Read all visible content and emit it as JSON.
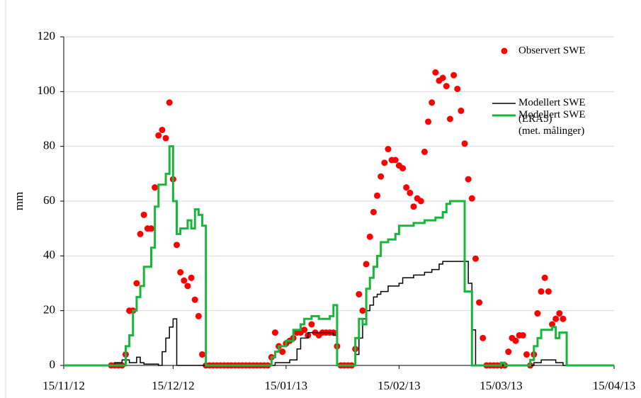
{
  "chart_data": {
    "type": "line",
    "ylabel": "mm",
    "xlim": [
      "2012-11-15",
      "2013-04-15"
    ],
    "xticks": [
      {
        "value": "2012-11-15",
        "label": "15/11/12"
      },
      {
        "value": "2012-12-15",
        "label": "15/12/12"
      },
      {
        "value": "2013-01-15",
        "label": "15/01/13"
      },
      {
        "value": "2013-02-15",
        "label": "15/02/13"
      },
      {
        "value": "2013-03-15",
        "label": "15/03/13"
      },
      {
        "value": "2013-04-15",
        "label": "15/04/13"
      }
    ],
    "ylim": [
      0,
      120
    ],
    "yticks": [
      0,
      20,
      40,
      60,
      80,
      100,
      120
    ],
    "grid": true,
    "legend": "upper right",
    "series": [
      {
        "name": "Observert SWE",
        "color": "#ff0000",
        "kind": "scatter",
        "x": [
          "2012-11-28",
          "2012-11-29",
          "2012-11-30",
          "2012-12-01",
          "2012-12-02",
          "2012-12-03",
          "2012-12-04",
          "2012-12-05",
          "2012-12-06",
          "2012-12-07",
          "2012-12-08",
          "2012-12-09",
          "2012-12-10",
          "2012-12-11",
          "2012-12-12",
          "2012-12-13",
          "2012-12-14",
          "2012-12-15",
          "2012-12-16",
          "2012-12-17",
          "2012-12-18",
          "2012-12-19",
          "2012-12-20",
          "2012-12-21",
          "2012-12-22",
          "2012-12-23",
          "2012-12-24",
          "2012-12-25",
          "2012-12-26",
          "2012-12-27",
          "2012-12-28",
          "2012-12-29",
          "2012-12-30",
          "2012-12-31",
          "2013-01-01",
          "2013-01-02",
          "2013-01-03",
          "2013-01-04",
          "2013-01-05",
          "2013-01-06",
          "2013-01-07",
          "2013-01-08",
          "2013-01-09",
          "2013-01-10",
          "2013-01-11",
          "2013-01-12",
          "2013-01-13",
          "2013-01-14",
          "2013-01-15",
          "2013-01-16",
          "2013-01-17",
          "2013-01-18",
          "2013-01-19",
          "2013-01-20",
          "2013-01-21",
          "2013-01-22",
          "2013-01-23",
          "2013-01-24",
          "2013-01-25",
          "2013-01-26",
          "2013-01-27",
          "2013-01-28",
          "2013-01-29",
          "2013-01-30",
          "2013-01-31",
          "2013-02-01",
          "2013-02-02",
          "2013-02-03",
          "2013-02-04",
          "2013-02-05",
          "2013-02-06",
          "2013-02-07",
          "2013-02-08",
          "2013-02-09",
          "2013-02-10",
          "2013-02-11",
          "2013-02-12",
          "2013-02-13",
          "2013-02-14",
          "2013-02-15",
          "2013-02-16",
          "2013-02-17",
          "2013-02-18",
          "2013-02-19",
          "2013-02-20",
          "2013-02-21",
          "2013-02-22",
          "2013-02-23",
          "2013-02-24",
          "2013-02-25",
          "2013-02-26",
          "2013-02-27",
          "2013-02-28",
          "2013-03-01",
          "2013-03-02",
          "2013-03-03",
          "2013-03-04",
          "2013-03-05",
          "2013-03-06",
          "2013-03-07",
          "2013-03-08",
          "2013-03-09",
          "2013-03-10",
          "2013-03-11",
          "2013-03-12",
          "2013-03-13",
          "2013-03-14",
          "2013-03-15",
          "2013-03-16",
          "2013-03-17",
          "2013-03-18",
          "2013-03-19",
          "2013-03-20",
          "2013-03-21",
          "2013-03-22",
          "2013-03-23",
          "2013-03-24",
          "2013-03-25",
          "2013-03-26",
          "2013-03-27",
          "2013-03-28",
          "2013-03-29",
          "2013-03-30",
          "2013-03-31",
          "2013-04-01"
        ],
        "values": [
          0,
          0,
          0,
          0,
          4,
          20,
          20,
          30,
          48,
          55,
          50,
          50,
          65,
          84,
          86,
          83,
          96,
          68,
          44,
          34,
          31,
          29,
          32,
          24,
          18,
          4,
          0,
          0,
          0,
          0,
          0,
          0,
          0,
          0,
          0,
          0,
          0,
          0,
          0,
          0,
          0,
          0,
          0,
          0,
          3,
          12,
          7,
          5,
          8,
          9,
          10,
          12,
          12,
          13,
          11,
          15,
          12,
          11,
          12,
          12,
          12,
          12,
          7,
          0,
          0,
          0,
          0,
          6,
          26,
          20,
          37,
          47,
          56,
          62,
          69,
          74,
          79,
          75,
          75,
          73,
          72,
          65,
          63,
          58,
          61,
          60,
          78,
          89,
          96,
          107,
          104,
          105,
          102,
          90,
          106,
          101,
          93,
          81,
          68,
          61,
          39,
          23,
          10,
          0,
          0,
          0,
          0,
          0,
          0,
          5,
          10,
          9,
          11,
          11,
          4,
          0,
          4,
          19,
          27,
          32,
          27,
          15,
          17,
          19,
          17
        ]
      },
      {
        "name": "Modellert SWE (ERA5)",
        "color": "#000000",
        "kind": "step",
        "x": [
          "2012-11-15",
          "2012-11-29",
          "2012-12-01",
          "2012-12-03",
          "2012-12-05",
          "2012-12-06",
          "2012-12-07",
          "2012-12-11",
          "2012-12-12",
          "2012-12-13",
          "2012-12-14",
          "2012-12-15",
          "2012-12-16",
          "2013-01-12",
          "2013-01-16",
          "2013-01-18",
          "2013-01-19",
          "2013-01-21",
          "2013-01-28",
          "2013-01-29",
          "2013-02-03",
          "2013-02-04",
          "2013-02-05",
          "2013-02-06",
          "2013-02-07",
          "2013-02-08",
          "2013-02-09",
          "2013-02-10",
          "2013-02-12",
          "2013-02-15",
          "2013-02-16",
          "2013-02-19",
          "2013-02-22",
          "2013-02-24",
          "2013-02-26",
          "2013-02-27",
          "2013-03-05",
          "2013-03-06",
          "2013-03-07",
          "2013-03-08",
          "2013-03-24",
          "2013-03-26",
          "2013-03-30",
          "2013-04-01",
          "2013-04-15"
        ],
        "values": [
          0,
          1,
          2,
          1,
          3,
          1,
          0.5,
          0,
          5,
          10,
          14,
          17,
          0,
          1,
          2,
          6,
          10,
          12,
          11,
          0,
          4,
          10,
          17,
          20,
          22,
          25,
          26,
          27,
          29,
          30,
          32,
          33,
          34,
          35,
          37,
          38,
          38,
          30,
          13,
          0,
          1,
          2,
          1,
          0,
          0
        ]
      },
      {
        "name": "Modellert SWE (met. målinger)",
        "color": "#1ab53c",
        "kind": "step",
        "x": [
          "2012-11-15",
          "2012-12-02",
          "2012-12-03",
          "2012-12-04",
          "2012-12-05",
          "2012-12-06",
          "2012-12-07",
          "2012-12-09",
          "2012-12-10",
          "2012-12-11",
          "2012-12-13",
          "2012-12-14",
          "2012-12-15",
          "2012-12-16",
          "2012-12-17",
          "2012-12-19",
          "2012-12-20",
          "2012-12-21",
          "2012-12-22",
          "2012-12-23",
          "2012-12-24",
          "2013-01-11",
          "2013-01-12",
          "2013-01-13",
          "2013-01-15",
          "2013-01-17",
          "2013-01-19",
          "2013-01-20",
          "2013-01-22",
          "2013-01-24",
          "2013-01-27",
          "2013-01-28",
          "2013-01-29",
          "2013-02-03",
          "2013-02-04",
          "2013-02-05",
          "2013-02-06",
          "2013-02-07",
          "2013-02-08",
          "2013-02-09",
          "2013-02-10",
          "2013-02-12",
          "2013-02-14",
          "2013-02-15",
          "2013-02-19",
          "2013-02-22",
          "2013-02-25",
          "2013-02-27",
          "2013-02-28",
          "2013-03-01",
          "2013-03-05",
          "2013-03-07",
          "2013-03-15",
          "2013-03-16",
          "2013-03-23",
          "2013-03-24",
          "2013-03-25",
          "2013-03-26",
          "2013-03-29",
          "2013-03-30",
          "2013-03-31",
          "2013-04-02",
          "2013-04-15"
        ],
        "values": [
          0,
          7,
          11,
          20,
          25,
          29,
          36,
          43,
          58,
          66,
          70,
          80,
          60,
          48,
          50,
          53,
          50,
          57,
          55,
          51,
          0,
          3,
          5,
          7,
          9,
          13,
          15,
          17,
          18,
          17,
          18,
          22,
          0,
          10,
          17,
          15,
          28,
          32,
          36,
          40,
          45,
          46,
          48,
          51,
          52,
          53,
          54,
          56,
          59,
          60,
          27,
          0,
          1,
          0,
          2,
          7,
          10,
          13,
          14,
          10,
          12,
          0,
          0
        ]
      }
    ]
  }
}
